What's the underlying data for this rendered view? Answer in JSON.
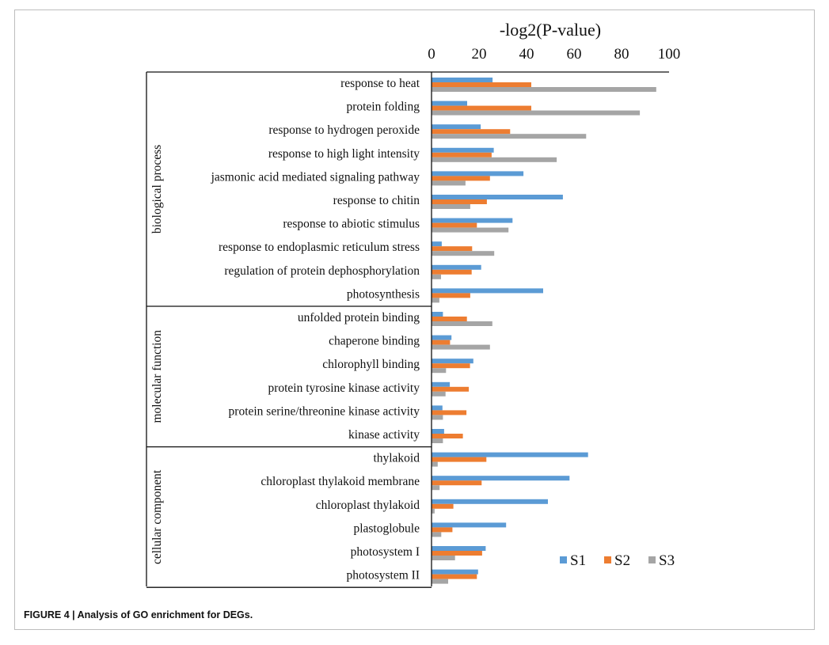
{
  "chart_data": {
    "type": "bar",
    "orientation": "horizontal",
    "title": "-log2(P-value)",
    "xlim": [
      0,
      100
    ],
    "xticks": [
      "0",
      "20",
      "40",
      "60",
      "80",
      "100"
    ],
    "legend_position": "bottom-right",
    "colors": {
      "S1": "#5b9bd5",
      "S2": "#ed7d31",
      "S3": "#a5a5a5"
    },
    "groups": [
      {
        "name": "biological process",
        "categories": [
          "response to heat",
          "protein folding",
          "response to hydrogen peroxide",
          "response to high light intensity",
          "jasmonic acid mediated signaling pathway",
          "response to chitin",
          "response to abiotic stimulus",
          "response to endoplasmic reticulum stress",
          "regulation of protein dephosphorylation",
          "photosynthesis"
        ]
      },
      {
        "name": "molecular function",
        "categories": [
          "unfolded protein binding",
          "chaperone binding",
          "chlorophyll binding",
          "protein tyrosine kinase activity",
          "protein serine/threonine kinase activity",
          "kinase activity"
        ]
      },
      {
        "name": "cellular component",
        "categories": [
          "thylakoid",
          "chloroplast thylakoid membrane",
          "chloroplast thylakoid",
          "plastoglobule",
          "photosystem I",
          "photosystem II"
        ]
      }
    ],
    "series": [
      {
        "name": "S1",
        "values": [
          25.7,
          15,
          20.7,
          26.2,
          38.7,
          55.3,
          34.1,
          4.3,
          20.9,
          47,
          4.8,
          8.4,
          17.6,
          7.7,
          4.6,
          5.3,
          65.9,
          58.1,
          49,
          31.4,
          22.8,
          19.6
        ]
      },
      {
        "name": "S2",
        "values": [
          42,
          42,
          33.1,
          25.3,
          24.6,
          23.3,
          19.1,
          17.1,
          16.9,
          16.3,
          14.9,
          7.8,
          16.2,
          15.7,
          14.7,
          13.2,
          23.1,
          21.1,
          9.2,
          8.8,
          21.3,
          19.1
        ]
      },
      {
        "name": "S3",
        "values": [
          94.6,
          87.7,
          65.1,
          52.7,
          14.3,
          16.3,
          32.4,
          26.4,
          4,
          3.3,
          25.6,
          24.6,
          6.1,
          5.9,
          4.8,
          4.8,
          2.6,
          3.4,
          1.3,
          4.1,
          9.9,
          7
        ]
      }
    ]
  },
  "caption": "FIGURE 4 | Analysis of GO enrichment for DEGs."
}
